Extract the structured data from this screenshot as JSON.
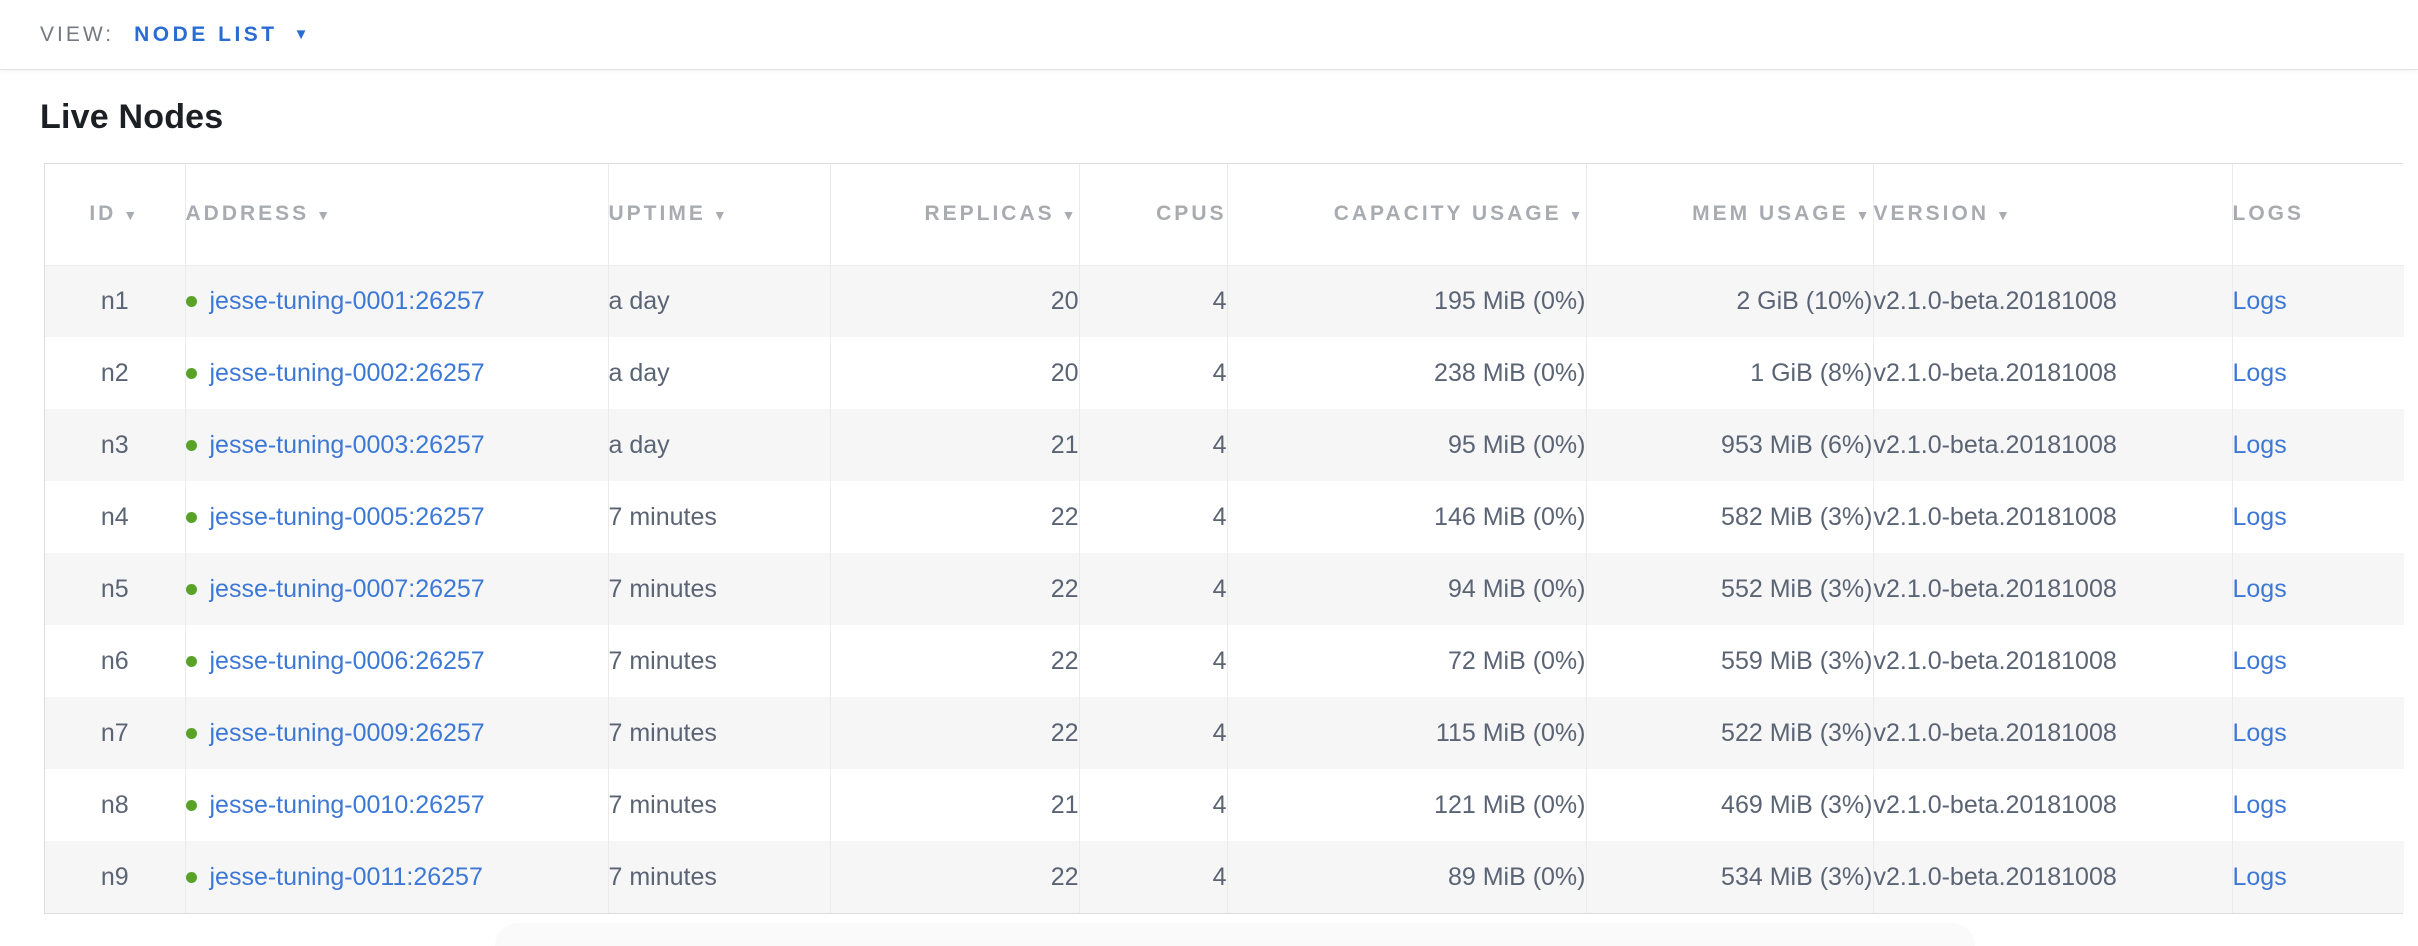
{
  "topbar": {
    "view_label": "VIEW:",
    "view_value": "NODE LIST"
  },
  "page": {
    "title": "Live Nodes"
  },
  "icons": {
    "sort_caret": "▼",
    "dropdown_caret": "▼"
  },
  "colors": {
    "link_blue": "#3d78d6",
    "accent_blue": "#2a6cd2",
    "status_green": "#58a22a",
    "cell_text": "#5a6474",
    "header_text": "#a8abb0",
    "alt_row_bg": "#f6f6f7"
  },
  "table": {
    "columns": [
      {
        "key": "id",
        "label": "ID",
        "sort_caret": true
      },
      {
        "key": "address",
        "label": "ADDRESS",
        "sort_caret": true
      },
      {
        "key": "uptime",
        "label": "UPTIME",
        "sort_caret": true
      },
      {
        "key": "replicas",
        "label": "REPLICAS",
        "sort_caret": true
      },
      {
        "key": "cpus",
        "label": "CPUS",
        "sort_caret": false
      },
      {
        "key": "capacity",
        "label": "CAPACITY USAGE",
        "sort_caret": true
      },
      {
        "key": "mem",
        "label": "MEM USAGE",
        "sort_caret": true
      },
      {
        "key": "version",
        "label": "VERSION",
        "sort_caret": true
      },
      {
        "key": "logs",
        "label": "LOGS",
        "sort_caret": false
      }
    ],
    "rows": [
      {
        "id": "n1",
        "address": "jesse-tuning-0001:26257",
        "status": "green",
        "uptime": "a day",
        "replicas": "20",
        "cpus": "4",
        "capacity": "195 MiB (0%)",
        "mem": "2 GiB (10%)",
        "version": "v2.1.0-beta.20181008",
        "logs": "Logs"
      },
      {
        "id": "n2",
        "address": "jesse-tuning-0002:26257",
        "status": "green",
        "uptime": "a day",
        "replicas": "20",
        "cpus": "4",
        "capacity": "238 MiB (0%)",
        "mem": "1 GiB (8%)",
        "version": "v2.1.0-beta.20181008",
        "logs": "Logs"
      },
      {
        "id": "n3",
        "address": "jesse-tuning-0003:26257",
        "status": "green",
        "uptime": "a day",
        "replicas": "21",
        "cpus": "4",
        "capacity": "95 MiB (0%)",
        "mem": "953 MiB (6%)",
        "version": "v2.1.0-beta.20181008",
        "logs": "Logs"
      },
      {
        "id": "n4",
        "address": "jesse-tuning-0005:26257",
        "status": "green",
        "uptime": "7 minutes",
        "replicas": "22",
        "cpus": "4",
        "capacity": "146 MiB (0%)",
        "mem": "582 MiB (3%)",
        "version": "v2.1.0-beta.20181008",
        "logs": "Logs"
      },
      {
        "id": "n5",
        "address": "jesse-tuning-0007:26257",
        "status": "green",
        "uptime": "7 minutes",
        "replicas": "22",
        "cpus": "4",
        "capacity": "94 MiB (0%)",
        "mem": "552 MiB (3%)",
        "version": "v2.1.0-beta.20181008",
        "logs": "Logs"
      },
      {
        "id": "n6",
        "address": "jesse-tuning-0006:26257",
        "status": "green",
        "uptime": "7 minutes",
        "replicas": "22",
        "cpus": "4",
        "capacity": "72 MiB (0%)",
        "mem": "559 MiB (3%)",
        "version": "v2.1.0-beta.20181008",
        "logs": "Logs"
      },
      {
        "id": "n7",
        "address": "jesse-tuning-0009:26257",
        "status": "green",
        "uptime": "7 minutes",
        "replicas": "22",
        "cpus": "4",
        "capacity": "115 MiB (0%)",
        "mem": "522 MiB (3%)",
        "version": "v2.1.0-beta.20181008",
        "logs": "Logs"
      },
      {
        "id": "n8",
        "address": "jesse-tuning-0010:26257",
        "status": "green",
        "uptime": "7 minutes",
        "replicas": "21",
        "cpus": "4",
        "capacity": "121 MiB (0%)",
        "mem": "469 MiB (3%)",
        "version": "v2.1.0-beta.20181008",
        "logs": "Logs"
      },
      {
        "id": "n9",
        "address": "jesse-tuning-0011:26257",
        "status": "green",
        "uptime": "7 minutes",
        "replicas": "22",
        "cpus": "4",
        "capacity": "89 MiB (0%)",
        "mem": "534 MiB (3%)",
        "version": "v2.1.0-beta.20181008",
        "logs": "Logs"
      }
    ]
  }
}
